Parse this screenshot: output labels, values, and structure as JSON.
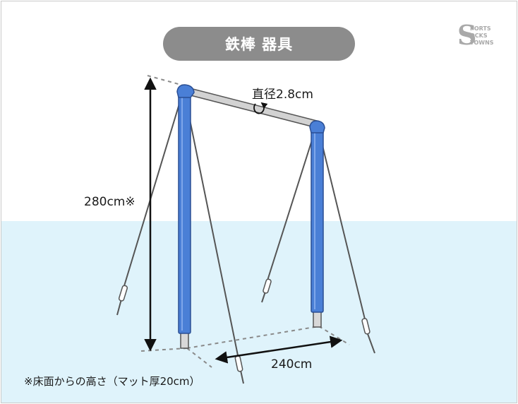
{
  "title": "鉄棒 器具",
  "labels": {
    "diameter": "直径2.8cm",
    "height": "280cm※",
    "width": "240cm",
    "note": "※床面からの高さ（マット厚20cm）"
  },
  "logo": {
    "letter": "S",
    "line1": "PORTS",
    "line2": "OCKS",
    "line3": "TOWNS"
  },
  "colors": {
    "background_top": "#ffffff",
    "background_bottom": "#dff3fb",
    "pill": "#8c8c8c",
    "post_blue": "#4a7fd6",
    "bar_gray": "#cfcfcf",
    "wire": "#555555",
    "arrow": "#111111"
  },
  "icons": [
    "rotation-arrow-icon",
    "dimension-arrow-icon",
    "logo-icon"
  ]
}
